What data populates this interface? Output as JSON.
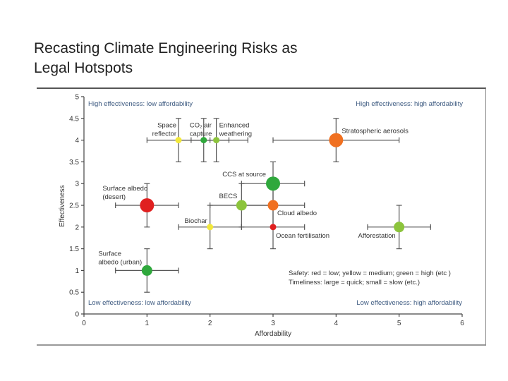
{
  "slide": {
    "title": "Recasting Climate Engineering Risks as\nLegal Hotspots"
  },
  "chart_data": {
    "type": "scatter",
    "xlabel": "Affordability",
    "ylabel": "Effectiveness",
    "xlim": [
      0,
      6
    ],
    "ylim": [
      0,
      5
    ],
    "xticks": [
      "0",
      "1",
      "2",
      "3",
      "4",
      "5",
      "6"
    ],
    "yticks": [
      "0",
      "0.5",
      "1",
      "1.5",
      "2",
      "2.5",
      "3",
      "3.5",
      "4",
      "4.5",
      "5"
    ],
    "grid": false,
    "quadrant_labels": {
      "top_left": "High effectiveness: low affordability",
      "top_right": "High effectiveness: high affordability",
      "bottom_left": "Low effectiveness: low affordability",
      "bottom_right": "Low effectiveness: high affordability"
    },
    "legend": {
      "placement": "bottom-right",
      "lines": [
        "Safety: red = low; yellow = medium; green = high (etc )",
        "Timeliness: large = quick; small = slow (etc.)"
      ]
    },
    "colors": {
      "red": "#e02020",
      "orange": "#f07020",
      "yellow": "#f2e83a",
      "yellowgreen": "#8cc43c",
      "green": "#2fa83c"
    },
    "points": [
      {
        "label": "Space reflector",
        "x": 1.5,
        "y": 4,
        "xerr": [
          1,
          2
        ],
        "yerr": [
          3.5,
          4.5
        ],
        "safety": "yellow",
        "timeliness": "small"
      },
      {
        "label": "CO₂ air capture",
        "x": 1.9,
        "y": 4,
        "xerr": [
          1.5,
          2.3
        ],
        "yerr": [
          3.5,
          4.5
        ],
        "safety": "green",
        "timeliness": "small"
      },
      {
        "label": "Enhanced weathering",
        "x": 2.1,
        "y": 4,
        "xerr": [
          1.7,
          2.6
        ],
        "yerr": [
          3.5,
          4.5
        ],
        "safety": "yellowgreen",
        "timeliness": "small"
      },
      {
        "label": "Stratospheric aerosols",
        "x": 4,
        "y": 4,
        "xerr": [
          3,
          5
        ],
        "yerr": [
          3.5,
          4.5
        ],
        "safety": "orange",
        "timeliness": "large"
      },
      {
        "label": "CCS at source",
        "x": 3,
        "y": 3,
        "xerr": [
          2.5,
          3.5
        ],
        "yerr": [
          2.5,
          3.5
        ],
        "safety": "green",
        "timeliness": "large"
      },
      {
        "label": "BECS",
        "x": 2.5,
        "y": 2.5,
        "xerr": [
          2,
          3
        ],
        "yerr": [
          2,
          3
        ],
        "safety": "yellowgreen",
        "timeliness": "medium"
      },
      {
        "label": "Cloud albedo",
        "x": 3,
        "y": 2.5,
        "xerr": [
          2.5,
          3.5
        ],
        "yerr": [
          2,
          3
        ],
        "safety": "orange",
        "timeliness": "medium"
      },
      {
        "label": "Biochar",
        "x": 2,
        "y": 2,
        "xerr": [
          1.5,
          2.5
        ],
        "yerr": [
          1.5,
          2.5
        ],
        "safety": "yellow",
        "timeliness": "small"
      },
      {
        "label": "Ocean fertilisation",
        "x": 3,
        "y": 2,
        "xerr": [
          2.5,
          3.5
        ],
        "yerr": [
          1.5,
          2.5
        ],
        "safety": "red",
        "timeliness": "small"
      },
      {
        "label": "Surface albedo (desert)",
        "x": 1,
        "y": 2.5,
        "xerr": [
          0.5,
          1.5
        ],
        "yerr": [
          2,
          3
        ],
        "safety": "red",
        "timeliness": "large"
      },
      {
        "label": "Surface albedo (urban)",
        "x": 1,
        "y": 1,
        "xerr": [
          0.5,
          1.5
        ],
        "yerr": [
          0.5,
          1.5
        ],
        "safety": "green",
        "timeliness": "medium"
      },
      {
        "label": "Afforestation",
        "x": 5,
        "y": 2,
        "xerr": [
          4.5,
          5.5
        ],
        "yerr": [
          1.5,
          2.5
        ],
        "safety": "yellowgreen",
        "timeliness": "medium"
      }
    ]
  }
}
